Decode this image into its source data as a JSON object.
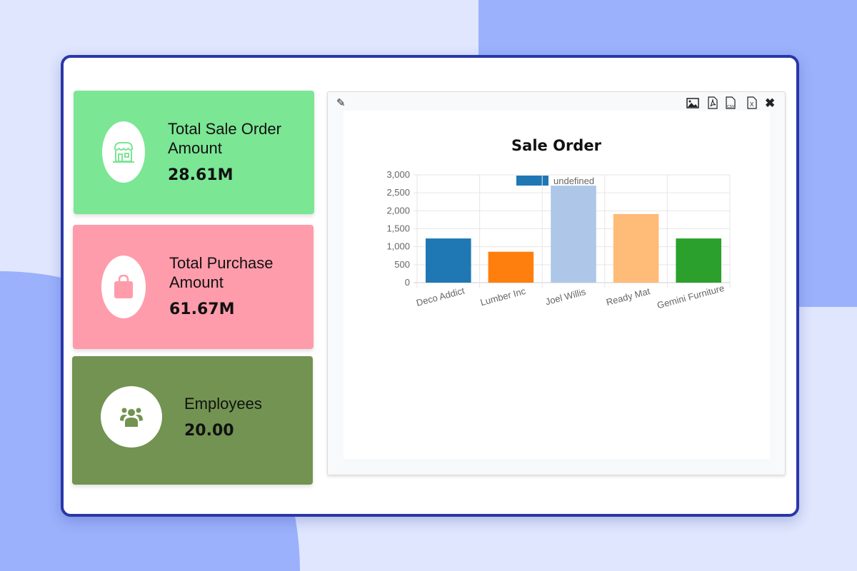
{
  "cards": [
    {
      "title_line1": "Total Sale Order",
      "title_line2": "Amount",
      "value": "28.61M",
      "icon": "store-icon",
      "color": "#7be694",
      "icon_color": "#7be694"
    },
    {
      "title_line1": "Total Purchase",
      "title_line2": "Amount",
      "value": "61.67M",
      "icon": "shopping-bag-icon",
      "color": "#ff9cab",
      "icon_color": "#ff9cab"
    },
    {
      "title_line1": "Employees",
      "value": "20.00",
      "icon": "users-icon",
      "color": "#729351",
      "icon_color": "#729351"
    }
  ],
  "toolbar": {
    "edit": "edit-icon",
    "actions": [
      "image-icon",
      "pdf-icon",
      "csv-icon",
      "excel-icon",
      "close-icon"
    ]
  },
  "chart_data": {
    "type": "bar",
    "title": "Sale Order",
    "legend": [
      "undefined"
    ],
    "legend_placement": "top",
    "categories": [
      "Deco Addict",
      "Lumber Inc",
      "Joel Willis",
      "Ready Mat",
      "Gemini Furniture"
    ],
    "values": [
      1230,
      860,
      2700,
      1910,
      1230
    ],
    "colors": [
      "#1f77b4",
      "#ff7f0e",
      "#aec7e8",
      "#ffbb78",
      "#2ca02c"
    ],
    "yticks": [
      "0",
      "500",
      "1,000",
      "1,500",
      "2,000",
      "2,500",
      "3,000"
    ],
    "ylim": [
      0,
      3000
    ],
    "grid": true
  }
}
